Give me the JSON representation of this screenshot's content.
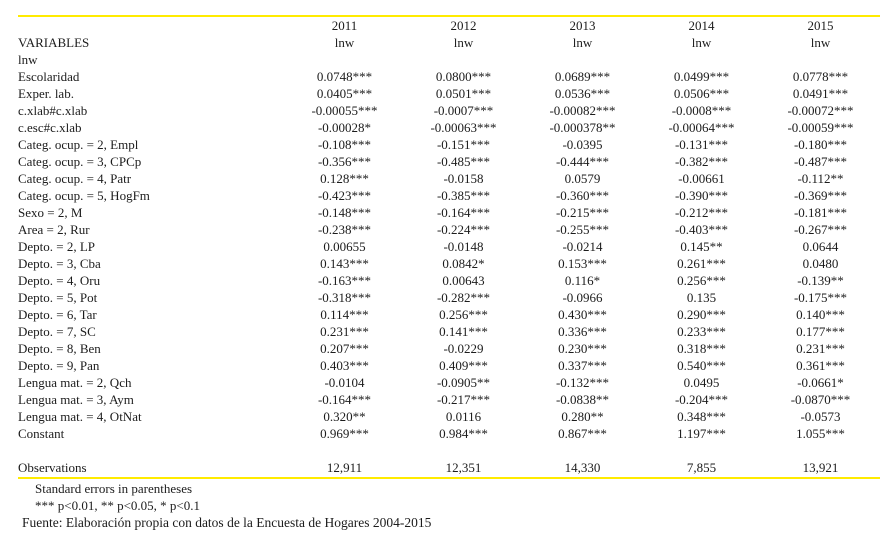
{
  "colors": {
    "rule": "#ffeb00",
    "text": "#1c1c1c"
  },
  "table": {
    "variables_header": "VARIABLES",
    "group_label": "lnw",
    "years": [
      "2011",
      "2012",
      "2013",
      "2014",
      "2015"
    ],
    "dep_vars": [
      "lnw",
      "lnw",
      "lnw",
      "lnw",
      "lnw"
    ],
    "rows": [
      {
        "label": "Escolaridad",
        "values": [
          "0.0748***",
          "0.0800***",
          "0.0689***",
          "0.0499***",
          "0.0778***"
        ]
      },
      {
        "label": "Exper. lab.",
        "values": [
          "0.0405***",
          "0.0501***",
          "0.0536***",
          "0.0506***",
          "0.0491***"
        ]
      },
      {
        "label": "c.xlab#c.xlab",
        "values": [
          "-0.00055***",
          "-0.0007***",
          "-0.00082***",
          "-0.0008***",
          "-0.00072***"
        ]
      },
      {
        "label": "c.esc#c.xlab",
        "values": [
          "-0.00028*",
          "-0.00063***",
          "-0.000378**",
          "-0.00064***",
          "-0.00059***"
        ]
      },
      {
        "label": "Categ. ocup. = 2, Empl",
        "values": [
          "-0.108***",
          "-0.151***",
          "-0.0395",
          "-0.131***",
          "-0.180***"
        ]
      },
      {
        "label": "Categ. ocup. = 3, CPCp",
        "values": [
          "-0.356***",
          "-0.485***",
          "-0.444***",
          "-0.382***",
          "-0.487***"
        ]
      },
      {
        "label": "Categ. ocup. = 4, Patr",
        "values": [
          "0.128***",
          "-0.0158",
          "0.0579",
          "-0.00661",
          "-0.112**"
        ]
      },
      {
        "label": "Categ. ocup. = 5, HogFm",
        "values": [
          "-0.423***",
          "-0.385***",
          "-0.360***",
          "-0.390***",
          "-0.369***"
        ]
      },
      {
        "label": "Sexo = 2, M",
        "values": [
          "-0.148***",
          "-0.164***",
          "-0.215***",
          "-0.212***",
          "-0.181***"
        ]
      },
      {
        "label": "Area = 2, Rur",
        "values": [
          "-0.238***",
          "-0.224***",
          "-0.255***",
          "-0.403***",
          "-0.267***"
        ]
      },
      {
        "label": "Depto. = 2, LP",
        "values": [
          "0.00655",
          "-0.0148",
          "-0.0214",
          "0.145**",
          "0.0644"
        ]
      },
      {
        "label": "Depto. = 3, Cba",
        "values": [
          "0.143***",
          "0.0842*",
          "0.153***",
          "0.261***",
          "0.0480"
        ]
      },
      {
        "label": "Depto. = 4, Oru",
        "values": [
          "-0.163***",
          "0.00643",
          "0.116*",
          "0.256***",
          "-0.139**"
        ]
      },
      {
        "label": "Depto. = 5, Pot",
        "values": [
          "-0.318***",
          "-0.282***",
          "-0.0966",
          "0.135",
          "-0.175***"
        ]
      },
      {
        "label": "Depto. = 6, Tar",
        "values": [
          "0.114***",
          "0.256***",
          "0.430***",
          "0.290***",
          "0.140***"
        ]
      },
      {
        "label": "Depto. = 7, SC",
        "values": [
          "0.231***",
          "0.141***",
          "0.336***",
          "0.233***",
          "0.177***"
        ]
      },
      {
        "label": "Depto. = 8, Ben",
        "values": [
          "0.207***",
          "-0.0229",
          "0.230***",
          "0.318***",
          "0.231***"
        ]
      },
      {
        "label": "Depto. = 9, Pan",
        "values": [
          "0.403***",
          "0.409***",
          "0.337***",
          "0.540***",
          "0.361***"
        ]
      },
      {
        "label": "Lengua mat. = 2, Qch",
        "values": [
          "-0.0104",
          "-0.0905**",
          "-0.132***",
          "0.0495",
          "-0.0661*"
        ]
      },
      {
        "label": "Lengua mat. = 3, Aym",
        "values": [
          "-0.164***",
          "-0.217***",
          "-0.0838**",
          "-0.204***",
          "-0.0870***"
        ]
      },
      {
        "label": "Lengua mat. = 4, OtNat",
        "values": [
          "0.320**",
          "0.0116",
          "0.280**",
          "0.348***",
          "-0.0573"
        ]
      },
      {
        "label": "Constant",
        "values": [
          "0.969***",
          "0.984***",
          "0.867***",
          "1.197***",
          "1.055***"
        ]
      }
    ],
    "observations": {
      "label": "Observations",
      "values": [
        "12,911",
        "12,351",
        "14,330",
        "7,855",
        "13,921"
      ]
    }
  },
  "footer": {
    "note1": "Standard errors in parentheses",
    "note2": "*** p<0.01, ** p<0.05, * p<0.1",
    "source": "Fuente: Elaboración propia con datos de la Encuesta de Hogares 2004-2015"
  }
}
